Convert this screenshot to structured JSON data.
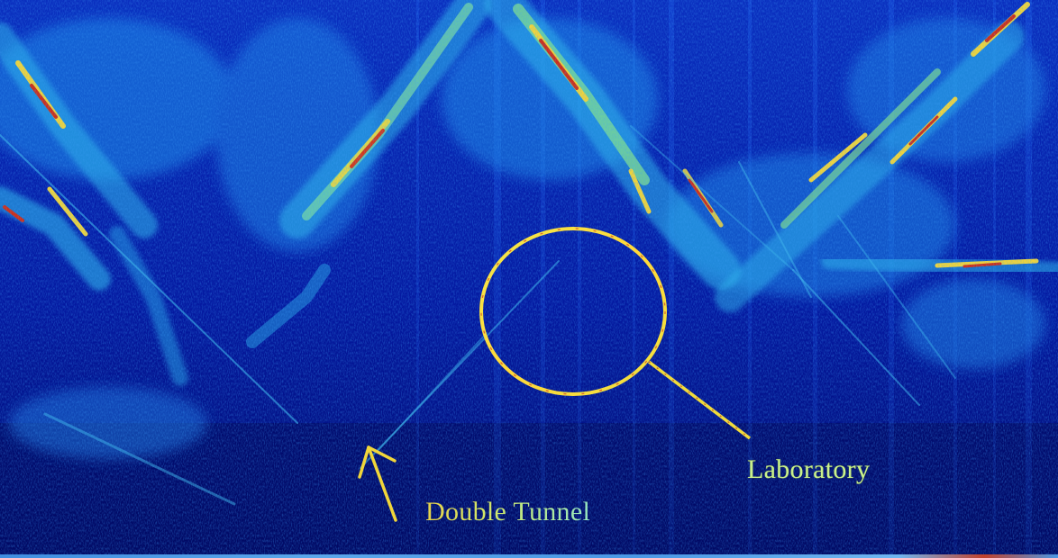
{
  "annotations": {
    "laboratory_label": "Laboratory",
    "tunnel_label": "Double Tunnel"
  },
  "colors": {
    "background": "#021279",
    "background_deep": "#00085a",
    "mid": "#0a5be0",
    "cyan": "#35c8e8",
    "green": "#8de07a",
    "yellow": "#f0e23a",
    "red": "#c8281a",
    "marker": "#f5e23a"
  },
  "icons": {
    "circle_marker": "circle-marker-icon",
    "leader_line": "leader-line-icon",
    "arrow": "arrow-up-icon"
  }
}
